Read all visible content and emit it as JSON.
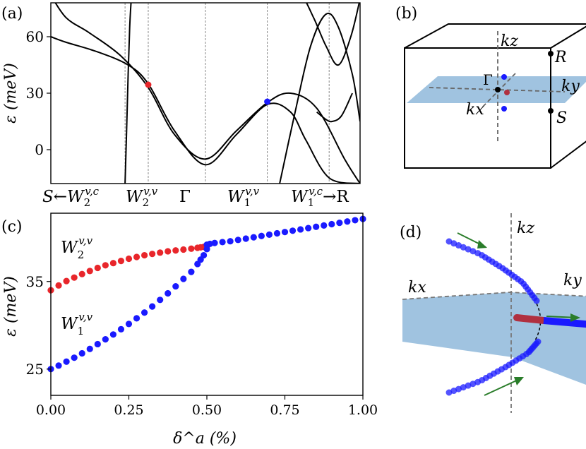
{
  "panel_labels": {
    "a": "(a)",
    "b": "(b)",
    "c": "(c)",
    "d": "(d)"
  },
  "colors": {
    "red_dot": "#e8262b",
    "blue_dot": "#1a1aff",
    "plane_fill": "#8fb9da",
    "arrow_green": "#2a7d2a",
    "grey_dash": "#777777",
    "dark_red_segment": "#b03040"
  },
  "panel_b": {
    "labels": {
      "kz": "kz",
      "ky": "ky",
      "kx": "kx",
      "gamma": "Γ",
      "R": "R",
      "S": "S"
    }
  },
  "panel_d": {
    "labels": {
      "kz": "kz",
      "ky": "ky",
      "kx": "kx"
    }
  },
  "chart_data": [
    {
      "id": "a",
      "type": "line",
      "title": "",
      "ylabel": "ε (meV)",
      "ylim": [
        -18,
        78
      ],
      "yticks": [
        0,
        30,
        60
      ],
      "xlabels": [
        "S←W₂^{v,c}",
        "W₂^{v,v}",
        "Γ",
        "W₁^{v,v}",
        "W₁^{v,c}→R"
      ],
      "xlabel_text": {
        "left": "S←W",
        "left_sub": "2",
        "left_sup": "v,c",
        "w2vv": "W",
        "w2vv_sub": "2",
        "w2vv_sup": "v,v",
        "gamma": "Γ",
        "w1vv": "W",
        "w1vv_sub": "1",
        "w1vv_sup": "v,v",
        "right": "W",
        "right_sub": "1",
        "right_sup": "v,c",
        "right_arrow": "→R"
      },
      "vertical_lines_k": [
        -0.52,
        -0.37,
        0.0,
        0.4,
        0.8
      ],
      "series": [
        {
          "name": "band-1",
          "k": [
            -1.0,
            -0.9,
            -0.75,
            -0.55,
            -0.37,
            -0.2,
            0.0,
            0.2,
            0.4,
            0.55,
            0.72,
            0.9,
            1.0
          ],
          "energy": [
            82,
            70,
            62,
            50,
            33,
            8,
            -5,
            10,
            25,
            30,
            22,
            -5,
            -18
          ]
        },
        {
          "name": "band-2",
          "k": [
            -1.0,
            -0.9,
            -0.7,
            -0.5,
            -0.37,
            -0.2,
            0.0,
            0.2,
            0.4,
            0.55,
            0.65,
            0.8,
            1.0
          ],
          "energy": [
            60,
            57,
            52,
            45,
            35,
            10,
            -8,
            8,
            24,
            20,
            5,
            -15,
            -18
          ]
        },
        {
          "name": "band-3",
          "k": [
            -0.52,
            -0.51,
            -0.5,
            -0.49,
            -0.48
          ],
          "energy": [
            -18,
            10,
            40,
            65,
            80
          ]
        },
        {
          "name": "band-4",
          "k": [
            0.55,
            0.62,
            0.7,
            0.78,
            0.86,
            0.94,
            1.0
          ],
          "energy": [
            80,
            82,
            70,
            55,
            45,
            60,
            80
          ]
        },
        {
          "name": "band-5",
          "k": [
            0.48,
            0.58,
            0.68,
            0.78,
            0.86,
            0.95,
            1.0
          ],
          "energy": [
            -18,
            20,
            55,
            72,
            65,
            40,
            15
          ]
        },
        {
          "name": "band-6",
          "k": [
            0.72,
            0.78,
            0.82,
            0.88,
            0.95
          ],
          "energy": [
            20,
            16,
            15,
            18,
            30
          ]
        }
      ],
      "points": [
        {
          "name": "W2vv",
          "k": -0.37,
          "energy": 34.5,
          "color": "red"
        },
        {
          "name": "W1vv",
          "k": 0.4,
          "energy": 25.5,
          "color": "blue"
        }
      ]
    },
    {
      "id": "c",
      "type": "scatter",
      "title": "",
      "xlabel": "δ^a (%)",
      "ylabel": "ε (meV)",
      "xlim": [
        0,
        1
      ],
      "ylim": [
        22.0,
        42.8
      ],
      "xticks": [
        "0.00",
        "0.25",
        "0.50",
        "0.75",
        "1.00"
      ],
      "yticks": [
        "25",
        "35"
      ],
      "series": [
        {
          "name": "W2vv",
          "label": "W",
          "label_sub": "2",
          "label_sup": "v,v",
          "color": "red",
          "x": [
            0.0,
            0.025,
            0.05,
            0.075,
            0.1,
            0.125,
            0.15,
            0.175,
            0.2,
            0.225,
            0.25,
            0.275,
            0.3,
            0.325,
            0.35,
            0.375,
            0.4,
            0.425,
            0.45,
            0.47,
            0.48,
            0.49,
            0.5
          ],
          "y": [
            34.0,
            34.55,
            35.05,
            35.45,
            35.85,
            36.2,
            36.55,
            36.85,
            37.1,
            37.35,
            37.6,
            37.8,
            38.0,
            38.15,
            38.3,
            38.45,
            38.55,
            38.65,
            38.75,
            38.85,
            38.9,
            38.95,
            39.0
          ]
        },
        {
          "name": "W1vv",
          "label": "W",
          "label_sub": "1",
          "label_sup": "v,v",
          "color": "blue",
          "x": [
            0.0,
            0.025,
            0.05,
            0.075,
            0.1,
            0.125,
            0.15,
            0.175,
            0.2,
            0.225,
            0.25,
            0.275,
            0.3,
            0.325,
            0.35,
            0.375,
            0.4,
            0.425,
            0.45,
            0.47,
            0.48,
            0.49,
            0.5
          ],
          "y": [
            25.0,
            25.4,
            25.85,
            26.3,
            26.8,
            27.3,
            27.85,
            28.4,
            28.95,
            29.55,
            30.15,
            30.8,
            31.45,
            32.15,
            32.9,
            33.65,
            34.45,
            35.3,
            36.1,
            37.0,
            37.5,
            38.0,
            38.7
          ]
        },
        {
          "name": "merged",
          "label": "",
          "color": "blue",
          "x": [
            0.5,
            0.51,
            0.525,
            0.55,
            0.575,
            0.6,
            0.625,
            0.65,
            0.675,
            0.7,
            0.725,
            0.75,
            0.775,
            0.8,
            0.825,
            0.85,
            0.875,
            0.9,
            0.925,
            0.95,
            0.975,
            1.0
          ],
          "y": [
            39.2,
            39.3,
            39.4,
            39.5,
            39.6,
            39.75,
            39.9,
            40.05,
            40.2,
            40.35,
            40.5,
            40.65,
            40.8,
            40.95,
            41.1,
            41.25,
            41.4,
            41.55,
            41.7,
            41.85,
            42.0,
            42.15
          ]
        }
      ]
    }
  ]
}
